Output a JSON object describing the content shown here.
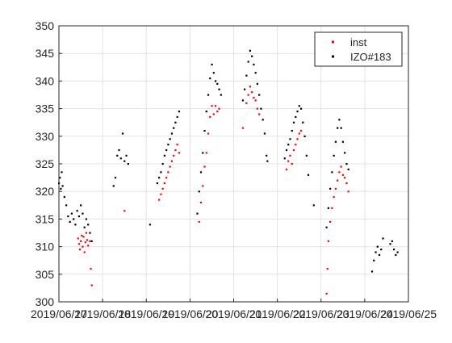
{
  "chart_data": {
    "type": "scatter",
    "title": "",
    "xlabel": "",
    "ylabel": "",
    "x_tick_labels": [
      "2019/06/17",
      "2019/06/18",
      "2019/06/19",
      "2019/06/20",
      "2019/06/21",
      "2019/06/22",
      "2019/06/23",
      "2019/06/24",
      "2019/06/25"
    ],
    "y_tick_labels": [
      "300",
      "305",
      "310",
      "315",
      "320",
      "325",
      "330",
      "335",
      "340",
      "345",
      "350"
    ],
    "x_range": [
      "2019-06-17",
      "2019-06-25"
    ],
    "ylim": [
      300,
      350
    ],
    "grid": true,
    "legend_position": "top-right",
    "series": [
      {
        "name": "inst",
        "color": "#ff0000",
        "marker": "dot",
        "points": [
          {
            "x": "2019-06-17 10:30",
            "y": 311.5
          },
          {
            "x": "2019-06-17 11:00",
            "y": 310.5
          },
          {
            "x": "2019-06-17 11:30",
            "y": 309.5
          },
          {
            "x": "2019-06-17 12:00",
            "y": 311.0
          },
          {
            "x": "2019-06-17 12:30",
            "y": 312.0
          },
          {
            "x": "2019-06-17 13:00",
            "y": 310.0
          },
          {
            "x": "2019-06-17 13:30",
            "y": 311.8
          },
          {
            "x": "2019-06-17 14:00",
            "y": 309.0
          },
          {
            "x": "2019-06-17 14:30",
            "y": 310.8
          },
          {
            "x": "2019-06-17 15:00",
            "y": 312.5
          },
          {
            "x": "2019-06-17 15:30",
            "y": 311.2
          },
          {
            "x": "2019-06-17 16:00",
            "y": 310.2
          },
          {
            "x": "2019-06-17 17:00",
            "y": 311.0
          },
          {
            "x": "2019-06-17 17:30",
            "y": 306.0
          },
          {
            "x": "2019-06-17 18:00",
            "y": 303.0
          },
          {
            "x": "2019-06-18 12:00",
            "y": 316.5
          },
          {
            "x": "2019-06-19 07:00",
            "y": 318.5
          },
          {
            "x": "2019-06-19 08:00",
            "y": 319.5
          },
          {
            "x": "2019-06-19 09:00",
            "y": 320.5
          },
          {
            "x": "2019-06-19 10:00",
            "y": 321.5
          },
          {
            "x": "2019-06-19 11:00",
            "y": 322.5
          },
          {
            "x": "2019-06-19 12:00",
            "y": 323.5
          },
          {
            "x": "2019-06-19 13:00",
            "y": 324.5
          },
          {
            "x": "2019-06-19 14:00",
            "y": 325.5
          },
          {
            "x": "2019-06-19 15:00",
            "y": 326.5
          },
          {
            "x": "2019-06-19 16:00",
            "y": 327.5
          },
          {
            "x": "2019-06-19 17:00",
            "y": 328.5
          },
          {
            "x": "2019-06-19 18:00",
            "y": 327.0
          },
          {
            "x": "2019-06-20 05:00",
            "y": 314.5
          },
          {
            "x": "2019-06-20 06:00",
            "y": 318.0
          },
          {
            "x": "2019-06-20 07:00",
            "y": 321.0
          },
          {
            "x": "2019-06-20 08:00",
            "y": 324.5
          },
          {
            "x": "2019-06-20 09:00",
            "y": 327.0
          },
          {
            "x": "2019-06-20 10:00",
            "y": 330.5
          },
          {
            "x": "2019-06-20 11:00",
            "y": 333.5
          },
          {
            "x": "2019-06-20 12:00",
            "y": 335.5
          },
          {
            "x": "2019-06-20 13:00",
            "y": 334.0
          },
          {
            "x": "2019-06-20 14:00",
            "y": 335.5
          },
          {
            "x": "2019-06-20 15:00",
            "y": 334.5
          },
          {
            "x": "2019-06-20 16:00",
            "y": 335.0
          },
          {
            "x": "2019-06-21 05:00",
            "y": 331.5
          },
          {
            "x": "2019-06-21 07:00",
            "y": 336.0
          },
          {
            "x": "2019-06-21 08:00",
            "y": 337.5
          },
          {
            "x": "2019-06-21 09:00",
            "y": 339.0
          },
          {
            "x": "2019-06-21 10:00",
            "y": 338.0
          },
          {
            "x": "2019-06-21 11:00",
            "y": 337.0
          },
          {
            "x": "2019-06-21 12:00",
            "y": 336.5
          },
          {
            "x": "2019-06-21 13:00",
            "y": 335.0
          },
          {
            "x": "2019-06-21 14:00",
            "y": 334.0
          },
          {
            "x": "2019-06-22 05:00",
            "y": 324.0
          },
          {
            "x": "2019-06-22 06:00",
            "y": 325.5
          },
          {
            "x": "2019-06-22 07:00",
            "y": 326.5
          },
          {
            "x": "2019-06-22 08:00",
            "y": 325.0
          },
          {
            "x": "2019-06-22 09:00",
            "y": 327.5
          },
          {
            "x": "2019-06-22 10:00",
            "y": 328.5
          },
          {
            "x": "2019-06-22 11:00",
            "y": 329.5
          },
          {
            "x": "2019-06-22 12:00",
            "y": 330.5
          },
          {
            "x": "2019-06-22 13:00",
            "y": 331.0
          },
          {
            "x": "2019-06-23 03:00",
            "y": 301.5
          },
          {
            "x": "2019-06-23 03:30",
            "y": 306.0
          },
          {
            "x": "2019-06-23 04:00",
            "y": 311.0
          },
          {
            "x": "2019-06-23 05:00",
            "y": 314.5
          },
          {
            "x": "2019-06-23 06:00",
            "y": 317.0
          },
          {
            "x": "2019-06-23 07:00",
            "y": 319.0
          },
          {
            "x": "2019-06-23 08:00",
            "y": 320.5
          },
          {
            "x": "2019-06-23 09:00",
            "y": 322.0
          },
          {
            "x": "2019-06-23 10:00",
            "y": 323.5
          },
          {
            "x": "2019-06-23 11:00",
            "y": 324.5
          },
          {
            "x": "2019-06-23 12:00",
            "y": 323.0
          },
          {
            "x": "2019-06-23 13:00",
            "y": 322.5
          },
          {
            "x": "2019-06-23 14:00",
            "y": 321.5
          },
          {
            "x": "2019-06-23 15:00",
            "y": 320.0
          }
        ]
      },
      {
        "name": "IZO#183",
        "color": "#000000",
        "marker": "dot",
        "points": [
          {
            "x": "2019-06-17 00:00",
            "y": 321.5
          },
          {
            "x": "2019-06-17 00:30",
            "y": 322.5
          },
          {
            "x": "2019-06-17 01:00",
            "y": 320.5
          },
          {
            "x": "2019-06-17 01:30",
            "y": 323.5
          },
          {
            "x": "2019-06-17 02:00",
            "y": 321.0
          },
          {
            "x": "2019-06-17 03:00",
            "y": 319.0
          },
          {
            "x": "2019-06-17 04:00",
            "y": 317.5
          },
          {
            "x": "2019-06-17 05:00",
            "y": 315.5
          },
          {
            "x": "2019-06-17 06:00",
            "y": 314.5
          },
          {
            "x": "2019-06-17 07:00",
            "y": 316.0
          },
          {
            "x": "2019-06-17 08:00",
            "y": 315.0
          },
          {
            "x": "2019-06-17 09:00",
            "y": 314.0
          },
          {
            "x": "2019-06-17 10:00",
            "y": 316.5
          },
          {
            "x": "2019-06-17 11:00",
            "y": 315.5
          },
          {
            "x": "2019-06-17 12:00",
            "y": 317.5
          },
          {
            "x": "2019-06-17 13:00",
            "y": 316.0
          },
          {
            "x": "2019-06-17 14:00",
            "y": 313.5
          },
          {
            "x": "2019-06-17 15:00",
            "y": 315.0
          },
          {
            "x": "2019-06-17 16:00",
            "y": 314.0
          },
          {
            "x": "2019-06-17 17:00",
            "y": 312.5
          },
          {
            "x": "2019-06-17 18:00",
            "y": 311.0
          },
          {
            "x": "2019-06-18 06:00",
            "y": 321.0
          },
          {
            "x": "2019-06-18 07:00",
            "y": 322.5
          },
          {
            "x": "2019-06-18 08:00",
            "y": 326.5
          },
          {
            "x": "2019-06-18 09:00",
            "y": 327.5
          },
          {
            "x": "2019-06-18 10:00",
            "y": 326.0
          },
          {
            "x": "2019-06-18 11:00",
            "y": 330.5
          },
          {
            "x": "2019-06-18 12:00",
            "y": 325.5
          },
          {
            "x": "2019-06-18 13:00",
            "y": 326.5
          },
          {
            "x": "2019-06-18 14:00",
            "y": 325.0
          },
          {
            "x": "2019-06-19 02:00",
            "y": 314.0
          },
          {
            "x": "2019-06-19 06:00",
            "y": 321.5
          },
          {
            "x": "2019-06-19 07:00",
            "y": 322.5
          },
          {
            "x": "2019-06-19 08:00",
            "y": 323.5
          },
          {
            "x": "2019-06-19 09:00",
            "y": 325.0
          },
          {
            "x": "2019-06-19 10:00",
            "y": 326.5
          },
          {
            "x": "2019-06-19 11:00",
            "y": 327.5
          },
          {
            "x": "2019-06-19 12:00",
            "y": 328.5
          },
          {
            "x": "2019-06-19 13:00",
            "y": 329.5
          },
          {
            "x": "2019-06-19 14:00",
            "y": 330.5
          },
          {
            "x": "2019-06-19 15:00",
            "y": 331.5
          },
          {
            "x": "2019-06-19 16:00",
            "y": 332.5
          },
          {
            "x": "2019-06-19 17:00",
            "y": 333.5
          },
          {
            "x": "2019-06-19 18:00",
            "y": 334.5
          },
          {
            "x": "2019-06-20 04:00",
            "y": 316.0
          },
          {
            "x": "2019-06-20 05:00",
            "y": 320.0
          },
          {
            "x": "2019-06-20 06:00",
            "y": 323.5
          },
          {
            "x": "2019-06-20 07:00",
            "y": 327.0
          },
          {
            "x": "2019-06-20 08:00",
            "y": 331.0
          },
          {
            "x": "2019-06-20 09:00",
            "y": 334.5
          },
          {
            "x": "2019-06-20 10:00",
            "y": 337.5
          },
          {
            "x": "2019-06-20 11:00",
            "y": 340.5
          },
          {
            "x": "2019-06-20 12:00",
            "y": 343.0
          },
          {
            "x": "2019-06-20 13:00",
            "y": 341.5
          },
          {
            "x": "2019-06-20 14:00",
            "y": 340.0
          },
          {
            "x": "2019-06-20 15:00",
            "y": 339.5
          },
          {
            "x": "2019-06-20 16:00",
            "y": 338.5
          },
          {
            "x": "2019-06-20 17:00",
            "y": 337.5
          },
          {
            "x": "2019-06-21 05:00",
            "y": 336.5
          },
          {
            "x": "2019-06-21 06:00",
            "y": 338.5
          },
          {
            "x": "2019-06-21 07:00",
            "y": 341.0
          },
          {
            "x": "2019-06-21 08:00",
            "y": 343.5
          },
          {
            "x": "2019-06-21 09:00",
            "y": 345.5
          },
          {
            "x": "2019-06-21 10:00",
            "y": 344.5
          },
          {
            "x": "2019-06-21 11:00",
            "y": 343.0
          },
          {
            "x": "2019-06-21 12:00",
            "y": 341.5
          },
          {
            "x": "2019-06-21 13:00",
            "y": 339.5
          },
          {
            "x": "2019-06-21 14:00",
            "y": 337.5
          },
          {
            "x": "2019-06-21 15:00",
            "y": 335.0
          },
          {
            "x": "2019-06-21 16:00",
            "y": 333.0
          },
          {
            "x": "2019-06-21 17:00",
            "y": 330.5
          },
          {
            "x": "2019-06-21 18:00",
            "y": 326.5
          },
          {
            "x": "2019-06-21 18:30",
            "y": 325.5
          },
          {
            "x": "2019-06-22 04:00",
            "y": 326.0
          },
          {
            "x": "2019-06-22 05:00",
            "y": 327.5
          },
          {
            "x": "2019-06-22 06:00",
            "y": 328.5
          },
          {
            "x": "2019-06-22 07:00",
            "y": 329.5
          },
          {
            "x": "2019-06-22 08:00",
            "y": 331.0
          },
          {
            "x": "2019-06-22 09:00",
            "y": 332.5
          },
          {
            "x": "2019-06-22 10:00",
            "y": 333.5
          },
          {
            "x": "2019-06-22 11:00",
            "y": 334.5
          },
          {
            "x": "2019-06-22 12:00",
            "y": 335.5
          },
          {
            "x": "2019-06-22 13:00",
            "y": 335.0
          },
          {
            "x": "2019-06-22 14:00",
            "y": 332.5
          },
          {
            "x": "2019-06-22 15:00",
            "y": 330.0
          },
          {
            "x": "2019-06-22 16:00",
            "y": 326.5
          },
          {
            "x": "2019-06-22 17:00",
            "y": 323.0
          },
          {
            "x": "2019-06-22 20:00",
            "y": 317.5
          },
          {
            "x": "2019-06-23 03:00",
            "y": 313.5
          },
          {
            "x": "2019-06-23 04:00",
            "y": 317.0
          },
          {
            "x": "2019-06-23 05:00",
            "y": 320.5
          },
          {
            "x": "2019-06-23 06:00",
            "y": 323.5
          },
          {
            "x": "2019-06-23 07:00",
            "y": 326.5
          },
          {
            "x": "2019-06-23 08:00",
            "y": 329.0
          },
          {
            "x": "2019-06-23 09:00",
            "y": 331.5
          },
          {
            "x": "2019-06-23 10:00",
            "y": 333.0
          },
          {
            "x": "2019-06-23 11:00",
            "y": 331.5
          },
          {
            "x": "2019-06-23 12:00",
            "y": 329.0
          },
          {
            "x": "2019-06-23 13:00",
            "y": 327.0
          },
          {
            "x": "2019-06-23 14:00",
            "y": 325.0
          },
          {
            "x": "2019-06-23 15:00",
            "y": 324.0
          },
          {
            "x": "2019-06-24 04:00",
            "y": 305.5
          },
          {
            "x": "2019-06-24 05:00",
            "y": 307.5
          },
          {
            "x": "2019-06-24 06:00",
            "y": 309.0
          },
          {
            "x": "2019-06-24 07:00",
            "y": 310.0
          },
          {
            "x": "2019-06-24 08:00",
            "y": 308.5
          },
          {
            "x": "2019-06-24 09:00",
            "y": 309.5
          },
          {
            "x": "2019-06-24 10:00",
            "y": 311.5
          },
          {
            "x": "2019-06-24 14:00",
            "y": 310.5
          },
          {
            "x": "2019-06-24 15:00",
            "y": 311.0
          },
          {
            "x": "2019-06-24 16:00",
            "y": 309.5
          },
          {
            "x": "2019-06-24 17:00",
            "y": 308.5
          },
          {
            "x": "2019-06-24 18:00",
            "y": 309.0
          }
        ]
      }
    ]
  }
}
